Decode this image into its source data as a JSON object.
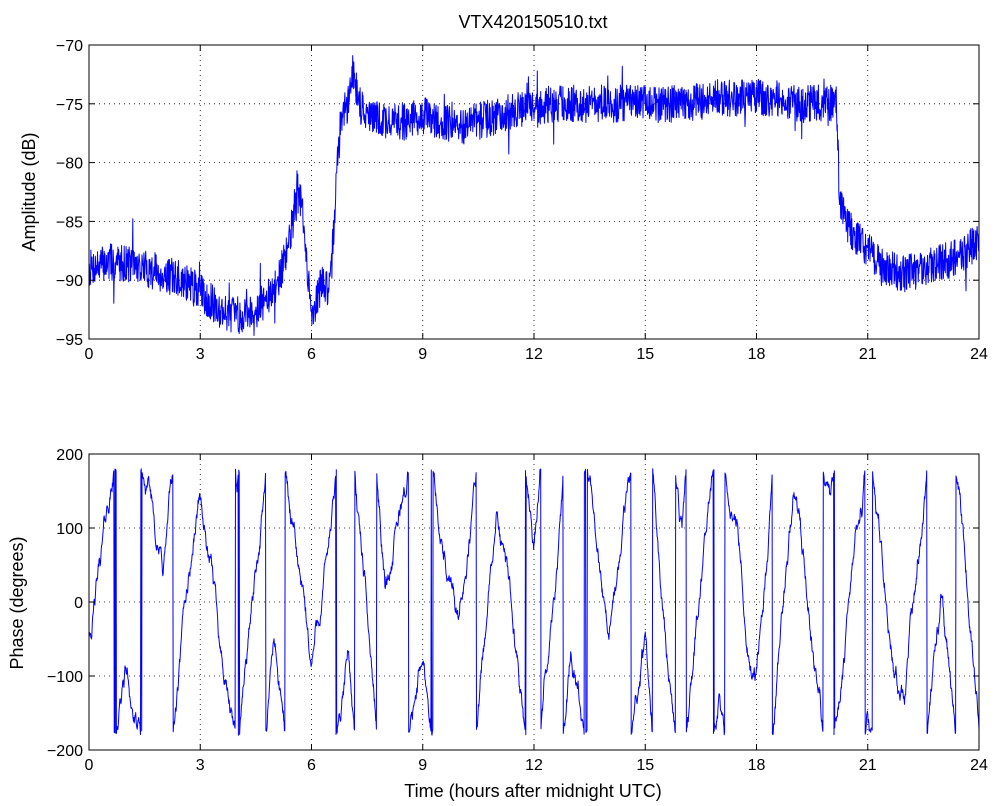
{
  "title": "VTX420150510.txt",
  "colors": {
    "trace": "#0000ff",
    "axes": "#000000",
    "background": "#ffffff"
  },
  "chart_data": [
    {
      "id": "amplitude",
      "type": "line",
      "title": "VTX420150510.txt",
      "xlabel": "",
      "ylabel": "Amplitude (dB)",
      "xlim": [
        0,
        24
      ],
      "ylim": [
        -95,
        -70
      ],
      "xticks": [
        0,
        3,
        6,
        9,
        12,
        15,
        18,
        21,
        24
      ],
      "yticks": [
        -95,
        -90,
        -85,
        -80,
        -75,
        -70
      ],
      "grid": true,
      "series": [
        {
          "color": "#0000ff",
          "noise": 1.6,
          "x": [
            0,
            0.5,
            1.0,
            1.5,
            2.0,
            2.5,
            3.0,
            3.5,
            4.0,
            4.5,
            5.0,
            5.3,
            5.5,
            5.6,
            5.75,
            5.9,
            6.0,
            6.1,
            6.3,
            6.5,
            6.7,
            6.8,
            7.0,
            7.1,
            7.3,
            7.5,
            8.0,
            8.5,
            9.0,
            9.5,
            10.0,
            10.5,
            11.0,
            11.5,
            12.0,
            12.5,
            13.0,
            14.0,
            15.0,
            16.0,
            17.0,
            18.0,
            18.5,
            19.0,
            19.5,
            20.0,
            20.15,
            20.25,
            20.5,
            21.0,
            21.5,
            22.0,
            22.5,
            23.0,
            23.5,
            24.0
          ],
          "y": [
            -89,
            -88.5,
            -88.5,
            -89,
            -89.5,
            -90,
            -91,
            -92.5,
            -93,
            -92.5,
            -91,
            -88,
            -85,
            -82,
            -84,
            -90,
            -92.5,
            -92,
            -90,
            -91,
            -80,
            -76,
            -75,
            -72,
            -75,
            -76,
            -76.5,
            -76.5,
            -76,
            -76.5,
            -77,
            -76.5,
            -76,
            -75.5,
            -75.5,
            -75,
            -75,
            -75,
            -75,
            -75,
            -74.5,
            -74.5,
            -74.5,
            -75,
            -75,
            -75,
            -75,
            -83.5,
            -85.5,
            -87.5,
            -89,
            -89.5,
            -89,
            -88.5,
            -88,
            -86.5
          ]
        }
      ]
    },
    {
      "id": "phase",
      "type": "line",
      "title": "",
      "xlabel": "Time (hours after midnight UTC)",
      "ylabel": "Phase (degrees)",
      "xlim": [
        0,
        24
      ],
      "ylim": [
        -200,
        200
      ],
      "xticks": [
        0,
        3,
        6,
        9,
        12,
        15,
        18,
        21,
        24
      ],
      "yticks": [
        -200,
        -100,
        0,
        100,
        200
      ],
      "grid": true,
      "series": [
        {
          "color": "#0000ff",
          "wrap": [
            -180,
            180
          ],
          "noise": 18,
          "slope_per_hour": [
            300,
            -260,
            420,
            -380,
            500,
            -450,
            350,
            -600,
            260,
            -320,
            480,
            -400,
            550,
            -350,
            300,
            -500,
            420,
            -280,
            600,
            -420,
            380,
            -300,
            450,
            -520
          ]
        }
      ]
    }
  ]
}
